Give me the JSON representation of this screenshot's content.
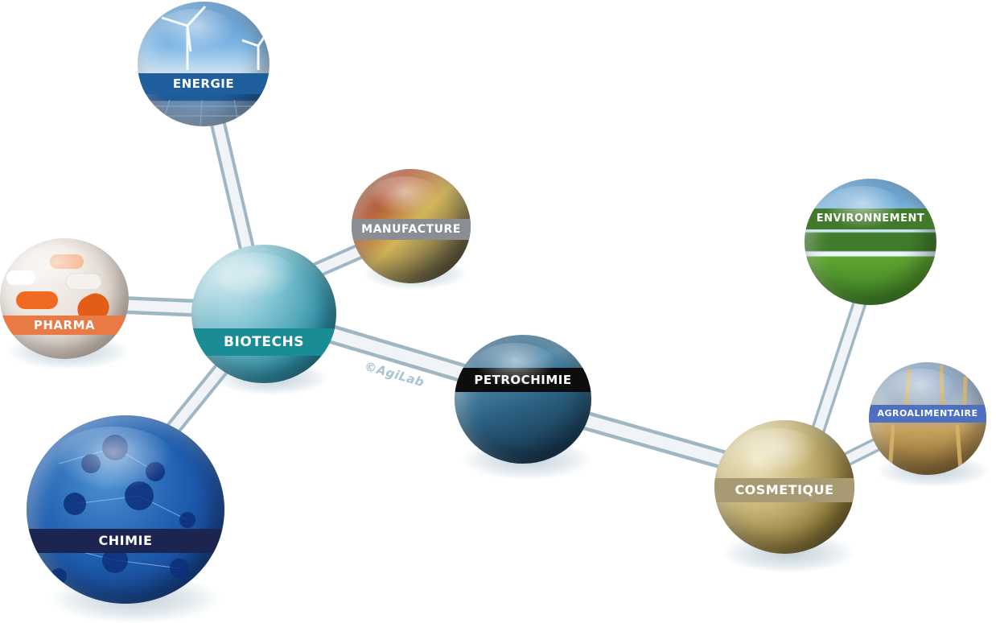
{
  "watermark": "©AgiLab",
  "nodes": {
    "energie": {
      "label": "ENERGIE",
      "band_color": "#1f5f9e"
    },
    "manufacture": {
      "label": "MANUFACTURE",
      "band_color": "#8a8d92"
    },
    "pharma": {
      "label": "PHARMA",
      "band_color": "#e87a45"
    },
    "biotechs": {
      "label": "BIOTECHS",
      "band_color": "#1a8c96"
    },
    "chimie": {
      "label": "CHIMIE",
      "band_color": "#1c2550"
    },
    "petrochimie": {
      "label": "PETROCHIMIE",
      "band_color": "#0d0d0d"
    },
    "environnement": {
      "label": "ENVIRONNEMENT",
      "band_color": "#3f7b2a"
    },
    "agroalimentaire": {
      "label": "AGROALIMENTAIRE",
      "band_color": "#4f6fc0"
    },
    "cosmetique": {
      "label": "COSMETIQUE",
      "band_color": "#a89a72"
    }
  }
}
